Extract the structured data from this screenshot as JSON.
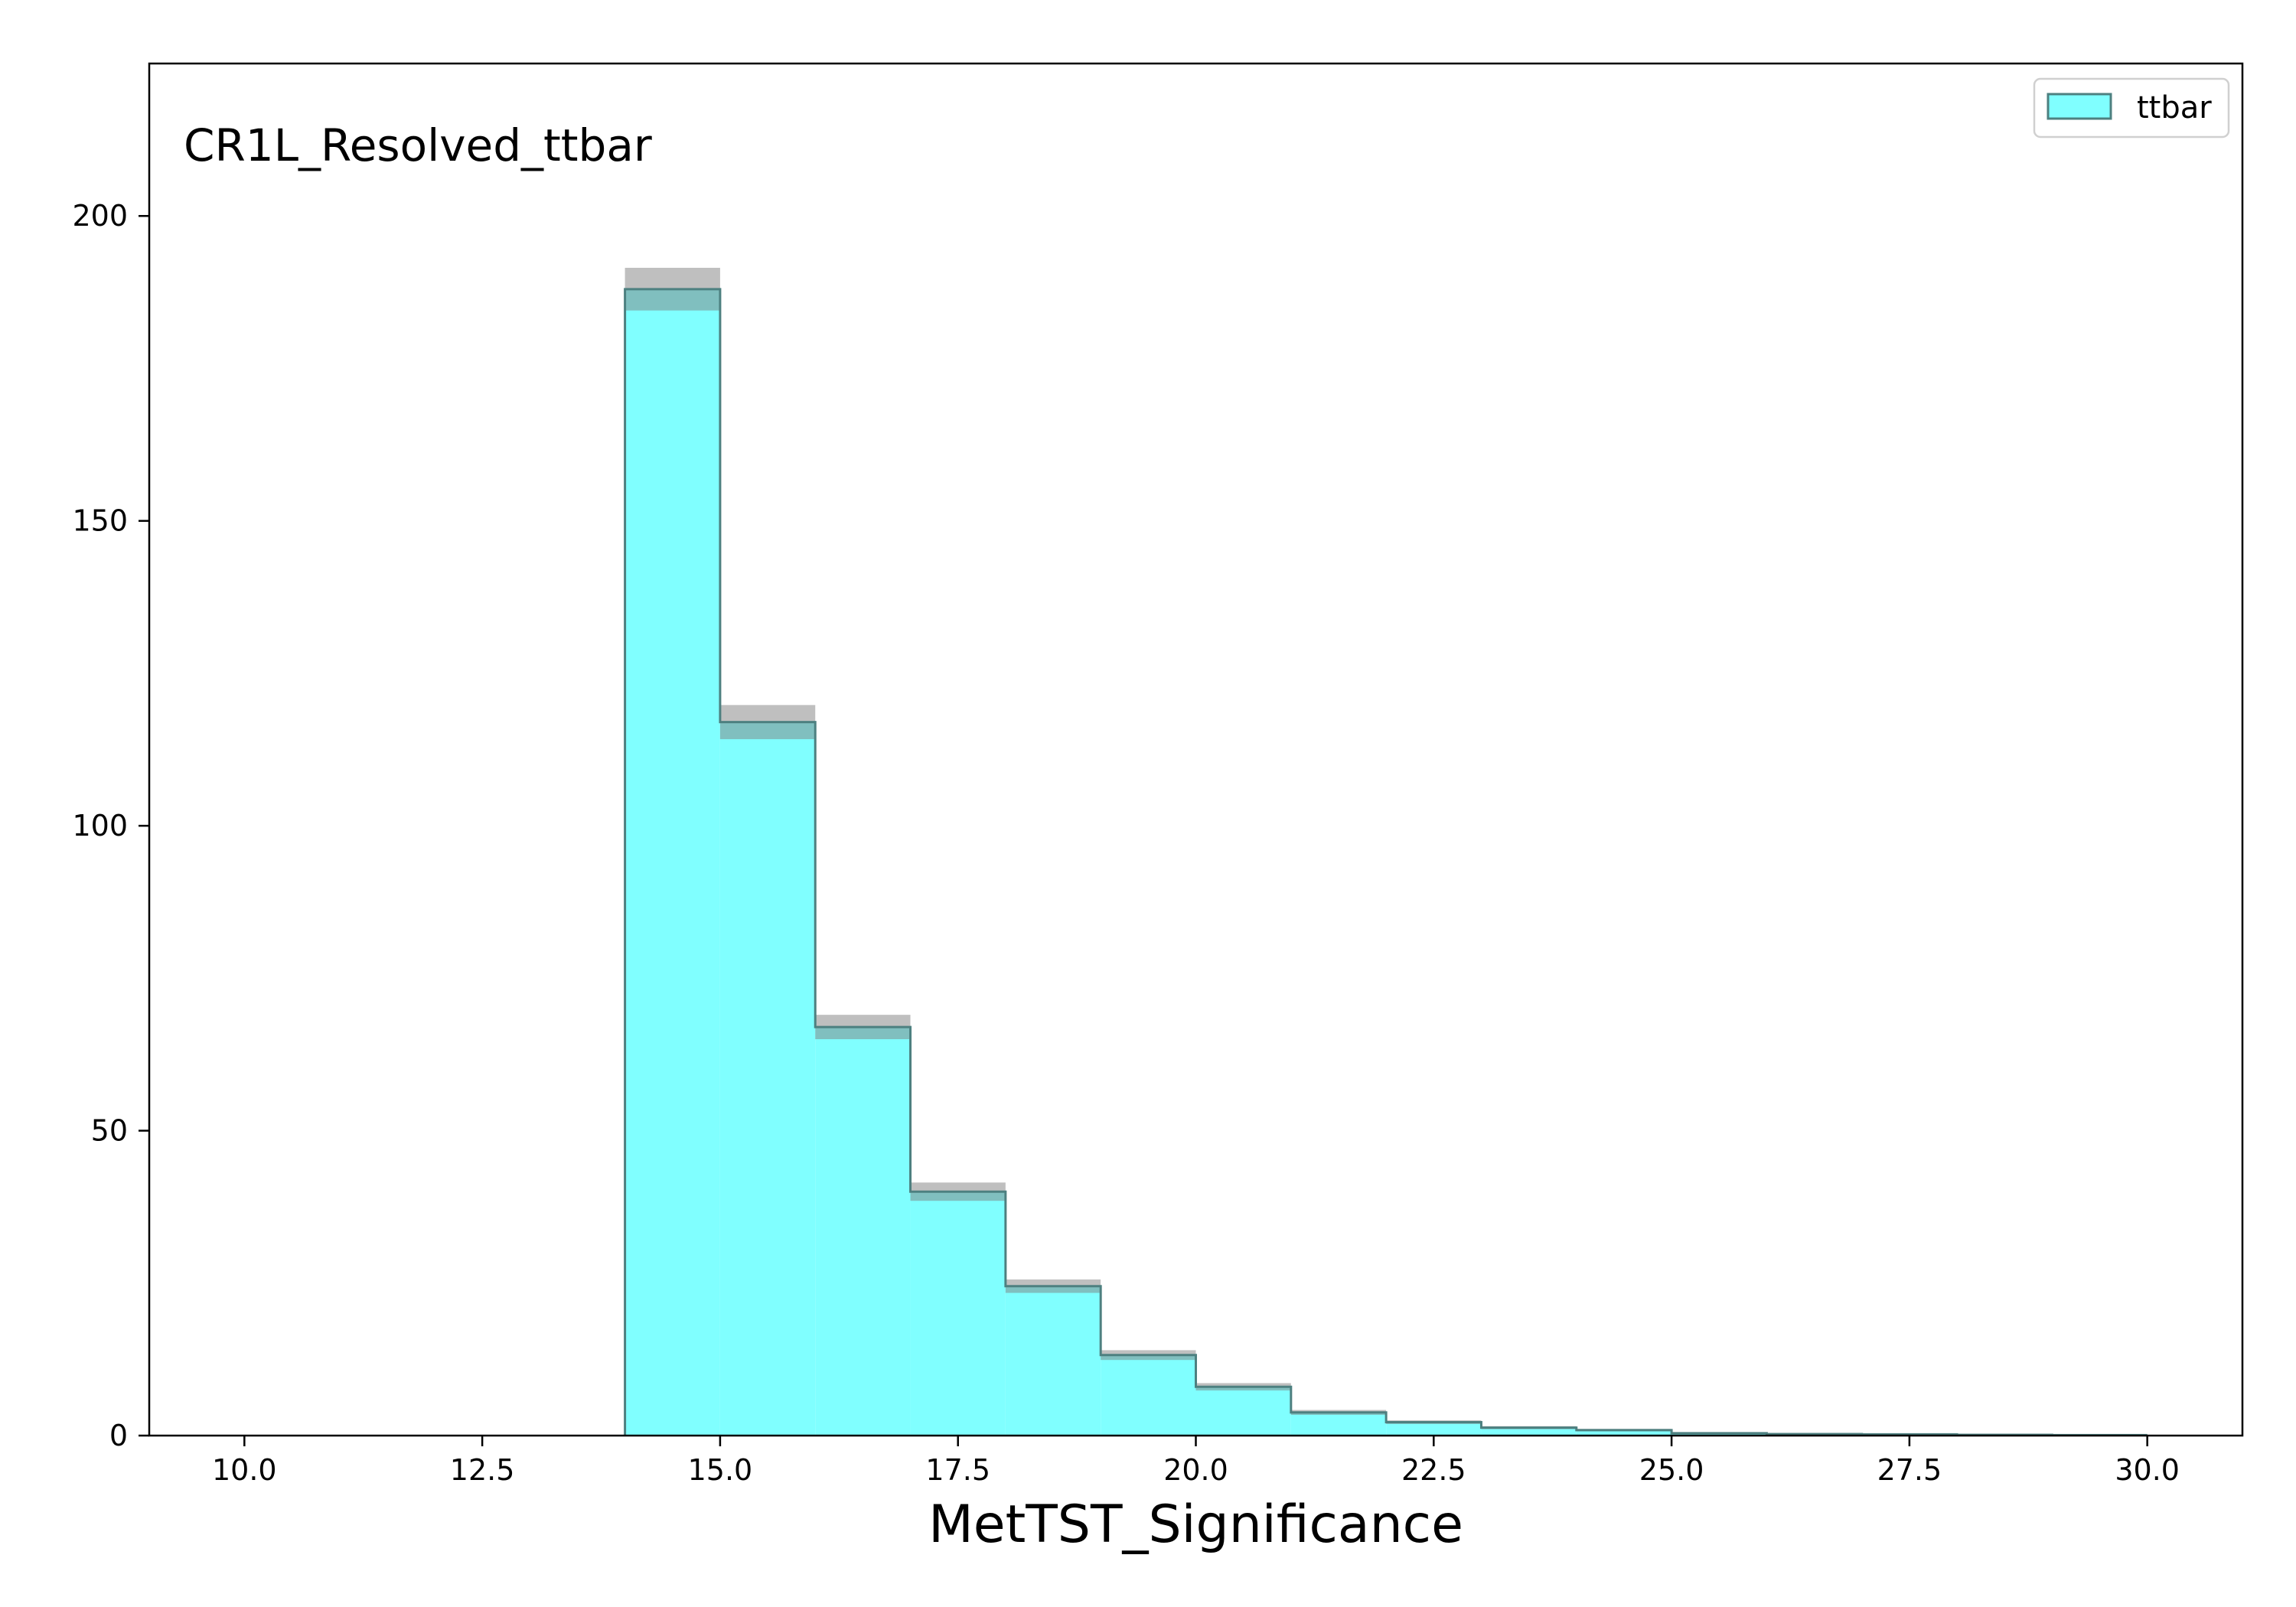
{
  "chart_data": {
    "type": "bar",
    "histogram": true,
    "region_label": "CR1L_Resolved_ttbar",
    "xlabel": "MetTST_Significance",
    "ylabel": "",
    "xlim": [
      9.0,
      31.0
    ],
    "ylim": [
      0,
      225
    ],
    "x_ticks": [
      10.0,
      12.5,
      15.0,
      17.5,
      20.0,
      22.5,
      25.0,
      27.5,
      30.0
    ],
    "x_tick_labels": [
      "10.0",
      "12.5",
      "15.0",
      "17.5",
      "20.0",
      "22.5",
      "25.0",
      "27.5",
      "30.0"
    ],
    "y_ticks": [
      0,
      50,
      100,
      150,
      200
    ],
    "y_tick_labels": [
      "0",
      "50",
      "100",
      "150",
      "200"
    ],
    "bin_edges": [
      10,
      11,
      12,
      13,
      14,
      15,
      16,
      17,
      18,
      19,
      20,
      21,
      22,
      23,
      24,
      25,
      26,
      27,
      28,
      29,
      30
    ],
    "series": [
      {
        "name": "ttbar",
        "color": "#80ffff",
        "edge_color": "#4d8080",
        "values": [
          0,
          0,
          0,
          0,
          188,
          117,
          67,
          40,
          24.5,
          13.2,
          8,
          3.8,
          2.2,
          1.3,
          0.9,
          0.4,
          0.25,
          0.2,
          0.12,
          0.08
        ],
        "uncertainty": [
          0,
          0,
          0,
          0,
          3.5,
          2.8,
          2.0,
          1.5,
          1.1,
          0.8,
          0.6,
          0.4,
          0.3,
          0.25,
          0.2,
          0.15,
          0.1,
          0.1,
          0.08,
          0.06
        ]
      }
    ],
    "uncertainty_color": "#808080",
    "legend": {
      "entries": [
        "ttbar"
      ],
      "position": "top-right"
    },
    "grid": false
  }
}
